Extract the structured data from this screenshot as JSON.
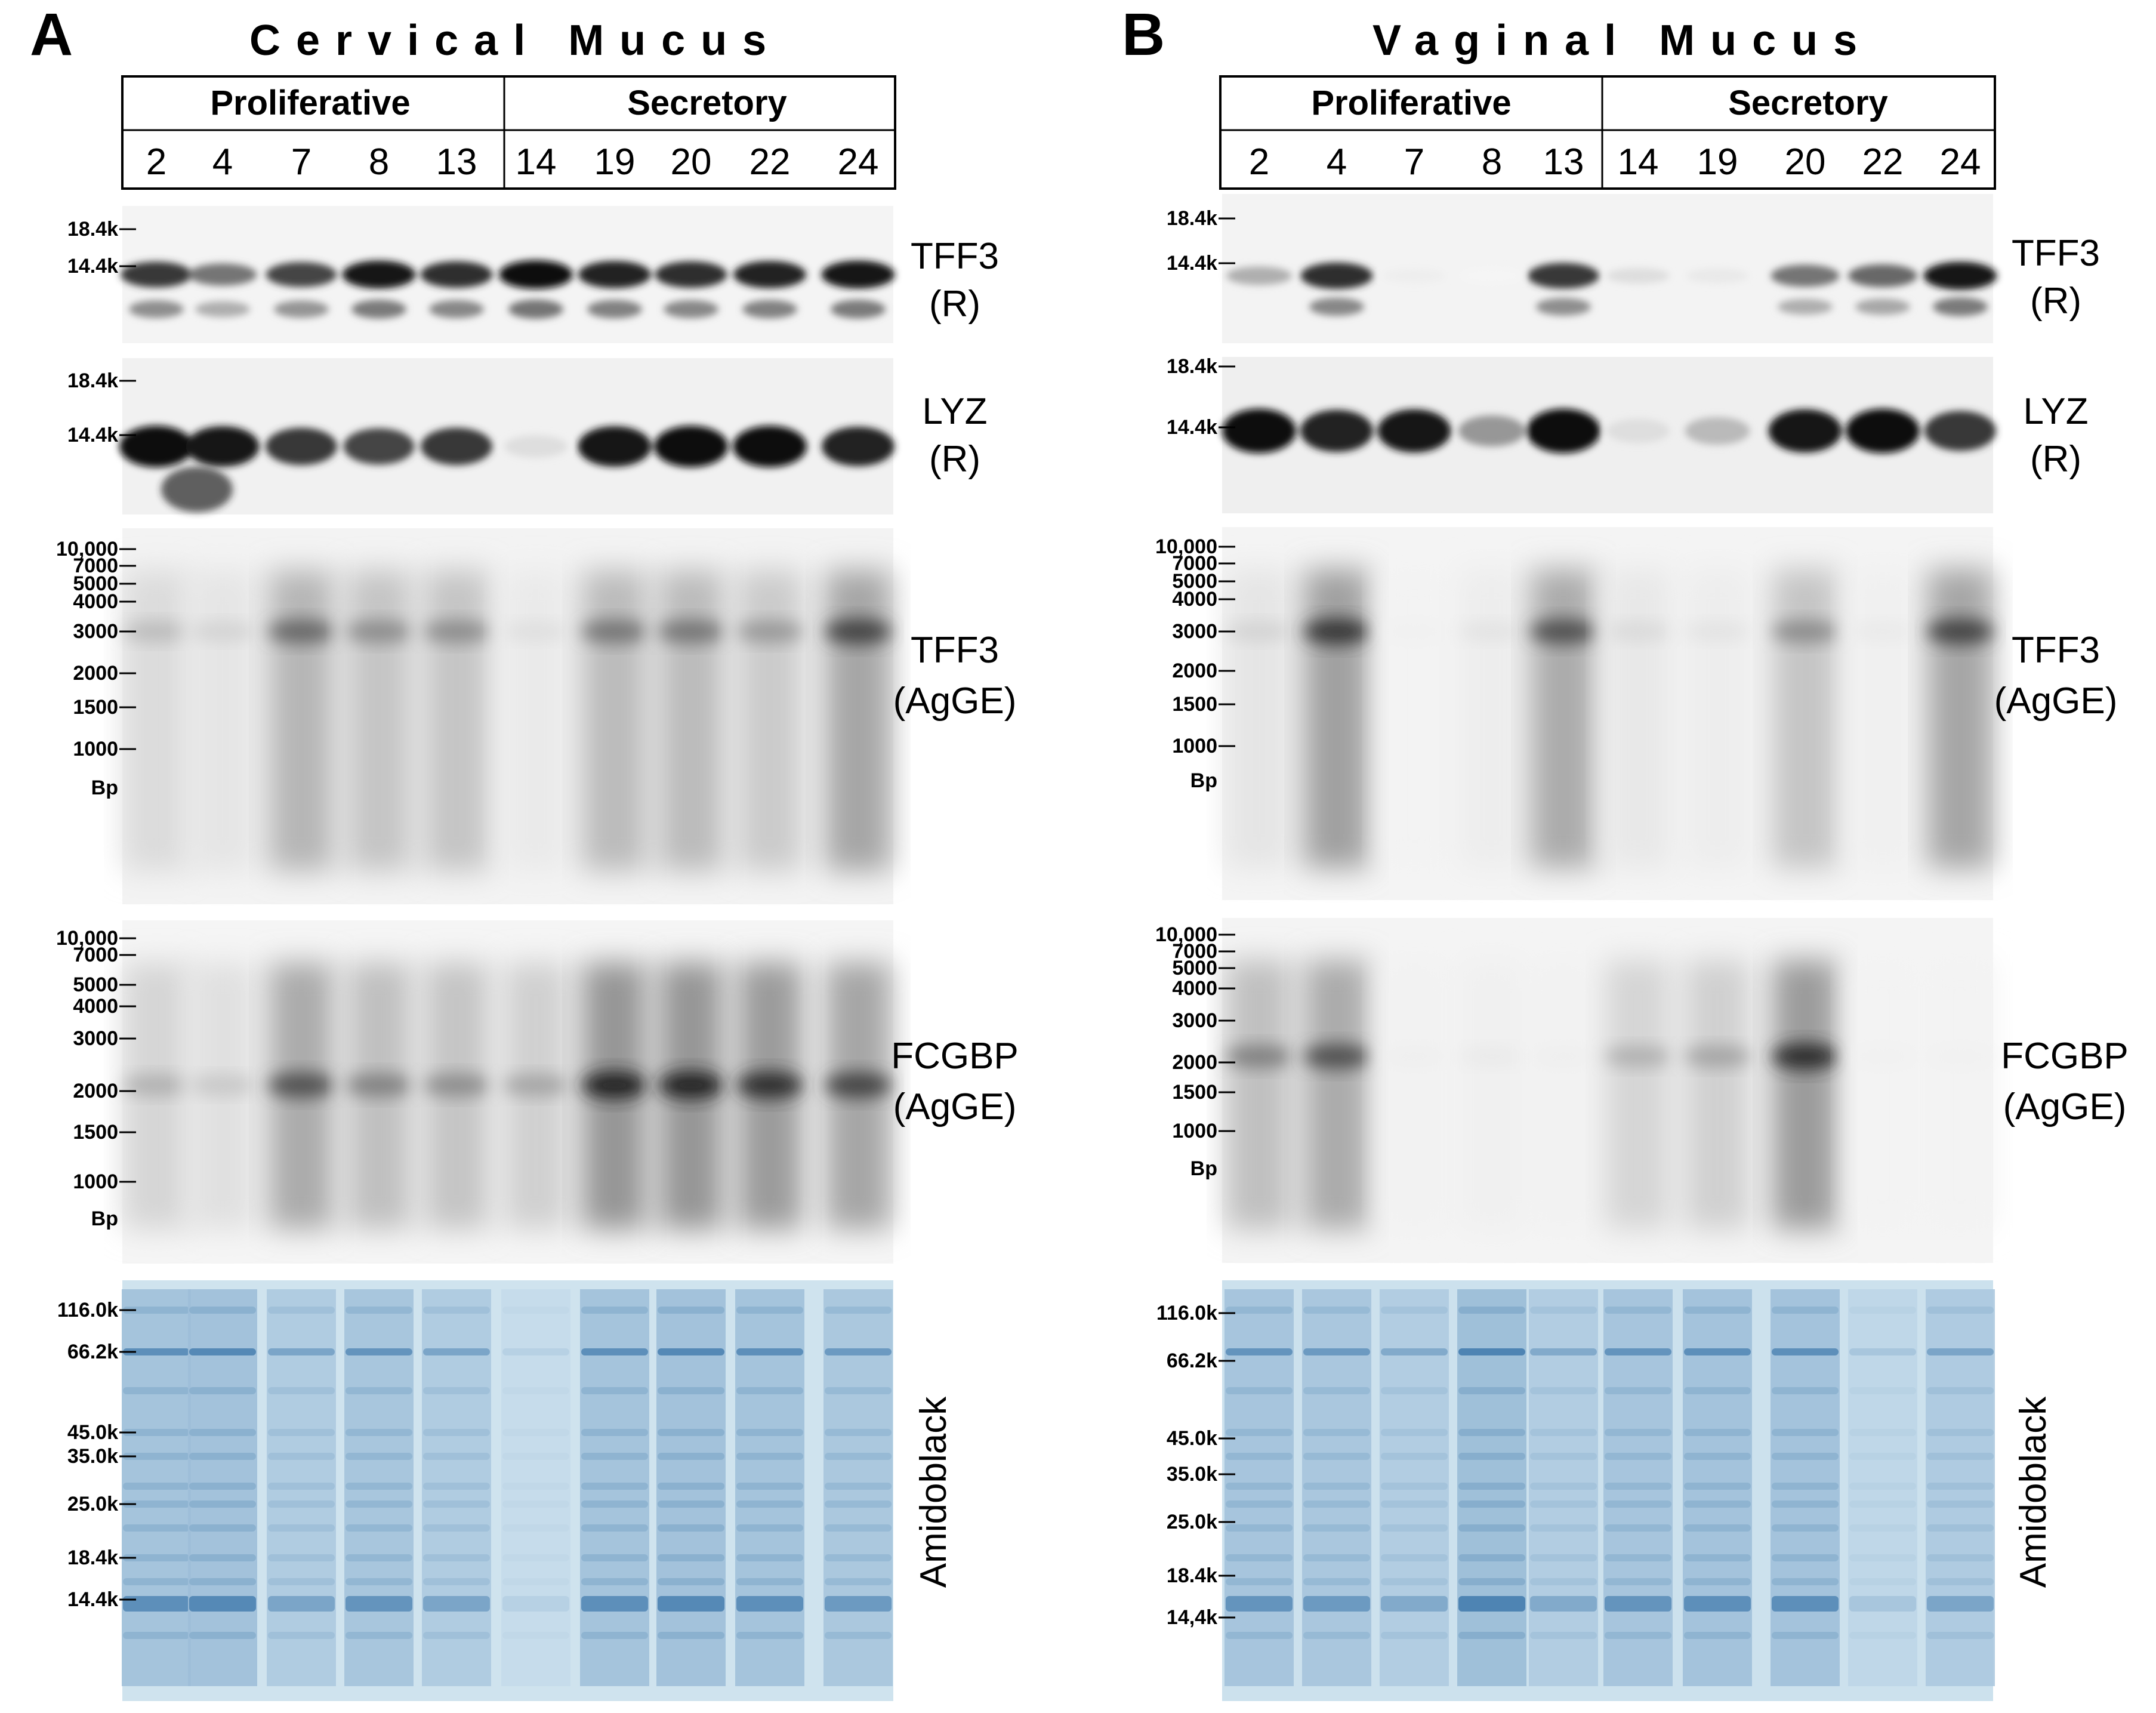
{
  "figure": {
    "panels": [
      {
        "id": "A",
        "letter": "A",
        "title": "Cervical Mucus",
        "phases": [
          {
            "name": "Proliferative",
            "lanes": [
              "2",
              "4",
              "7",
              "8",
              "13"
            ]
          },
          {
            "name": "Secretory",
            "lanes": [
              "14",
              "19",
              "20",
              "22",
              "24"
            ]
          }
        ],
        "blots": [
          {
            "label": [
              "TFF3",
              "(R)"
            ],
            "type": "western",
            "markers": [
              "18.4k",
              "14.4k"
            ],
            "lane_intensity": [
              0.8,
              0.55,
              0.75,
              0.95,
              0.85,
              1.0,
              0.9,
              0.85,
              0.9,
              0.95
            ]
          },
          {
            "label": [
              "LYZ",
              "(R)"
            ],
            "type": "western",
            "markers": [
              "18.4k",
              "14.4k"
            ],
            "lane_intensity": [
              1.0,
              0.95,
              0.8,
              0.75,
              0.8,
              0.1,
              0.95,
              1.0,
              1.0,
              0.9
            ]
          },
          {
            "label": [
              "TFF3",
              "(AgGE)"
            ],
            "type": "agarose",
            "markers": [
              "10,000",
              "7000",
              "5000",
              "4000",
              "3000",
              "2000",
              "1500",
              "1000",
              "Bp"
            ],
            "lane_intensity": [
              0.25,
              0.15,
              0.6,
              0.45,
              0.45,
              0.1,
              0.55,
              0.55,
              0.4,
              0.75
            ]
          },
          {
            "label": [
              "FCGBP",
              "(AgGE)"
            ],
            "type": "agarose",
            "markers": [
              "10,000",
              "7000",
              "5000",
              "4000",
              "3000",
              "2000",
              "1500",
              "1000",
              "Bp"
            ],
            "lane_intensity": [
              0.3,
              0.2,
              0.7,
              0.5,
              0.45,
              0.35,
              0.9,
              0.9,
              0.85,
              0.75
            ]
          },
          {
            "label": [
              "Amidoblack"
            ],
            "type": "stain",
            "markers": [
              "116.0k",
              "66.2k",
              "45.0k",
              "35.0k",
              "25.0k",
              "18.4k",
              "14.4k"
            ],
            "lane_intensity": [
              0.75,
              0.8,
              0.55,
              0.7,
              0.55,
              0.15,
              0.75,
              0.8,
              0.75,
              0.65
            ]
          }
        ]
      },
      {
        "id": "B",
        "letter": "B",
        "title": "Vaginal Mucus",
        "phases": [
          {
            "name": "Proliferative",
            "lanes": [
              "2",
              "4",
              "7",
              "8",
              "13"
            ]
          },
          {
            "name": "Secretory",
            "lanes": [
              "14",
              "19",
              "20",
              "22",
              "24"
            ]
          }
        ],
        "blots": [
          {
            "label": [
              "TFF3",
              "(R)"
            ],
            "type": "western",
            "markers": [
              "18.4k",
              "14.4k"
            ],
            "lane_intensity": [
              0.3,
              0.85,
              0.03,
              0.0,
              0.8,
              0.1,
              0.05,
              0.55,
              0.6,
              0.95
            ]
          },
          {
            "label": [
              "LYZ",
              "(R)"
            ],
            "type": "western",
            "markers": [
              "18.4k",
              "14.4k"
            ],
            "lane_intensity": [
              1.0,
              0.9,
              0.95,
              0.4,
              1.0,
              0.1,
              0.25,
              0.95,
              1.0,
              0.8
            ]
          },
          {
            "label": [
              "TFF3",
              "(AgGE)"
            ],
            "type": "agarose",
            "markers": [
              "10,000",
              "7000",
              "5000",
              "4000",
              "3000",
              "2000",
              "1500",
              "1000",
              "Bp"
            ],
            "lane_intensity": [
              0.15,
              0.8,
              0.02,
              0.08,
              0.7,
              0.12,
              0.08,
              0.45,
              0.05,
              0.75
            ]
          },
          {
            "label": [
              "FCGBP",
              "(AgGE)"
            ],
            "type": "agarose",
            "markers": [
              "10,000",
              "7000",
              "5000",
              "4000",
              "3000",
              "2000",
              "1500",
              "1000",
              "Bp"
            ],
            "lane_intensity": [
              0.5,
              0.7,
              0.03,
              0.05,
              0.03,
              0.3,
              0.35,
              0.85,
              0.02,
              0.02
            ]
          },
          {
            "label": [
              "Amidoblack"
            ],
            "type": "stain",
            "markers": [
              "116.0k",
              "66.2k",
              "45.0k",
              "35.0k",
              "25.0k",
              "18.4k",
              "14,4k"
            ],
            "lane_intensity": [
              0.7,
              0.65,
              0.5,
              0.85,
              0.5,
              0.7,
              0.75,
              0.75,
              0.25,
              0.55
            ]
          }
        ]
      }
    ]
  }
}
